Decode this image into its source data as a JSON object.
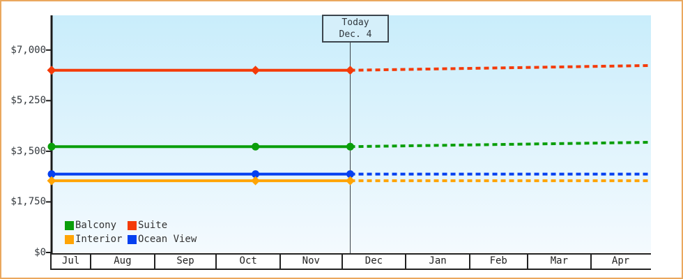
{
  "window": {
    "border_color": "#eaa85e",
    "background": "#ffffff"
  },
  "today_flag": {
    "line1": "Today",
    "line2": "Dec. 4"
  },
  "legend": {
    "rows": [
      [
        {
          "label": "Balcony",
          "color": "#0a9e0a"
        },
        {
          "label": "Suite",
          "color": "#f43b09"
        }
      ],
      [
        {
          "label": "Interior",
          "color": "#ffa405"
        },
        {
          "label": "Ocean View",
          "color": "#0540f0"
        }
      ]
    ]
  },
  "chart_data": {
    "type": "line",
    "title": "",
    "xlabel": "",
    "ylabel": "",
    "grid": false,
    "legend_position": "bottom-left",
    "plot_background": {
      "top": "#c9edfb",
      "bottom": "#f4fafe"
    },
    "axis_color": "#1a1a1a",
    "today_line_color": "#3a4046",
    "x_axis": {
      "start_date": "Jul 12",
      "end_date": "Apr 28",
      "months": [
        {
          "label": "Jul",
          "days": 20
        },
        {
          "label": "Aug",
          "days": 31
        },
        {
          "label": "Sep",
          "days": 30
        },
        {
          "label": "Oct",
          "days": 31
        },
        {
          "label": "Nov",
          "days": 30
        },
        {
          "label": "Dec",
          "days": 31
        },
        {
          "label": "Jan",
          "days": 31
        },
        {
          "label": "Feb",
          "days": 28
        },
        {
          "label": "Mar",
          "days": 31
        },
        {
          "label": "Apr",
          "days": 28
        }
      ]
    },
    "y_axis": {
      "ylim": [
        0,
        8200
      ],
      "ticks": [
        {
          "value": 0,
          "label": "$0"
        },
        {
          "value": 1750,
          "label": "$1,750"
        },
        {
          "value": 3500,
          "label": "$3,500"
        },
        {
          "value": 5250,
          "label": "$5,250"
        },
        {
          "value": 7000,
          "label": "$7,000"
        }
      ]
    },
    "today": {
      "label": "Dec. 4",
      "day_index": 145
    },
    "series": [
      {
        "name": "Suite",
        "color": "#f43b09",
        "marker": "diamond",
        "points": [
          {
            "day": 0,
            "value": 6300
          },
          {
            "day": 99,
            "value": 6300
          },
          {
            "day": 145,
            "value": 6300
          }
        ],
        "forecast": [
          {
            "day": 145,
            "value": 6300
          },
          {
            "day": 290,
            "value": 6465
          }
        ]
      },
      {
        "name": "Balcony",
        "color": "#0a9e0a",
        "marker": "circle",
        "points": [
          {
            "day": 0,
            "value": 3660
          },
          {
            "day": 99,
            "value": 3660
          },
          {
            "day": 145,
            "value": 3660
          }
        ],
        "forecast": [
          {
            "day": 145,
            "value": 3660
          },
          {
            "day": 290,
            "value": 3810
          }
        ]
      },
      {
        "name": "Ocean View",
        "color": "#0540f0",
        "marker": "circle",
        "points": [
          {
            "day": 0,
            "value": 2710
          },
          {
            "day": 99,
            "value": 2710
          },
          {
            "day": 145,
            "value": 2710
          }
        ],
        "forecast": [
          {
            "day": 145,
            "value": 2710
          },
          {
            "day": 290,
            "value": 2710
          }
        ]
      },
      {
        "name": "Interior",
        "color": "#ffa405",
        "marker": "diamond",
        "points": [
          {
            "day": 0,
            "value": 2480
          },
          {
            "day": 99,
            "value": 2480
          },
          {
            "day": 145,
            "value": 2480
          }
        ],
        "forecast": [
          {
            "day": 145,
            "value": 2480
          },
          {
            "day": 290,
            "value": 2480
          }
        ]
      }
    ]
  }
}
